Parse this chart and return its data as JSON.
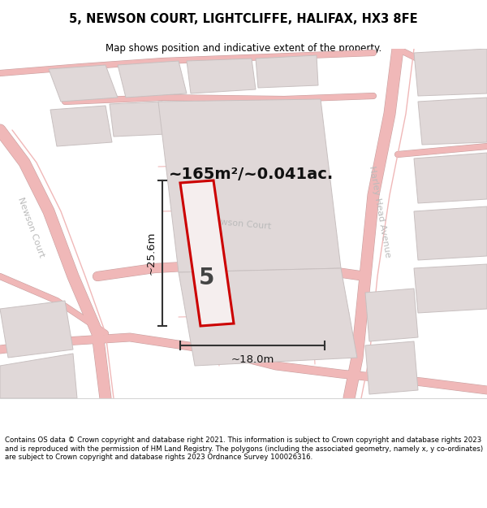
{
  "title": "5, NEWSON COURT, LIGHTCLIFFE, HALIFAX, HX3 8FE",
  "subtitle": "Map shows position and indicative extent of the property.",
  "footer": "Contains OS data © Crown copyright and database right 2021. This information is subject to Crown copyright and database rights 2023 and is reproduced with the permission of HM Land Registry. The polygons (including the associated geometry, namely x, y co-ordinates) are subject to Crown copyright and database rights 2023 Ordnance Survey 100026316.",
  "area_label": "~165m²/~0.041ac.",
  "width_label": "~18.0m",
  "height_label": "~25.6m",
  "plot_number": "5",
  "bg_color": "#f7f3f3",
  "road_color": "#f0b8b8",
  "road_outline_color": "#c8a0a0",
  "building_color": "#e0d8d8",
  "building_edge": "#c8c0c0",
  "plot_fill": "#f5eeee",
  "plot_edge": "#cc0000",
  "dim_color": "#333333",
  "road_label_color": "#aaaaaa",
  "title_color": "#000000",
  "footer_color": "#000000"
}
